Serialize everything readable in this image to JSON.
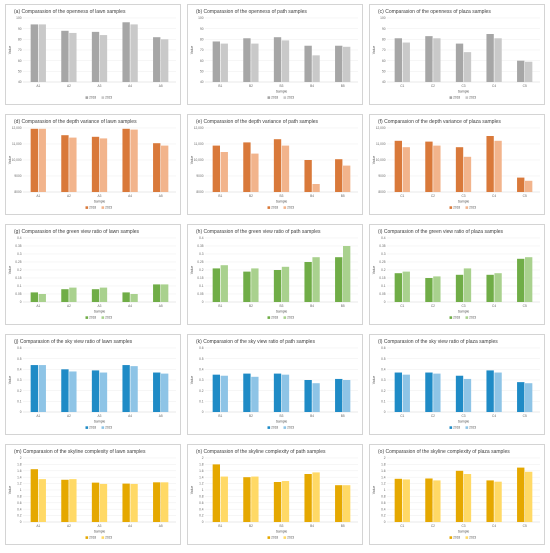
{
  "chart_data": [
    {
      "id": "a",
      "type": "bar",
      "title": "(a) Comparasion of the openness of lawn samples",
      "xlabel": "",
      "ylabel": "Value",
      "ylim": [
        40,
        100
      ],
      "ytick_labels": [
        "40",
        "50",
        "60",
        "70",
        "80",
        "90",
        "100"
      ],
      "categories": [
        "A1",
        "A2",
        "A3",
        "A4",
        "A5"
      ],
      "series": [
        {
          "name": "2018",
          "values": [
            94,
            88,
            87,
            96,
            82
          ],
          "color": "#a6a6a6"
        },
        {
          "name": "2023",
          "values": [
            94,
            86,
            84,
            94,
            80
          ],
          "color": "#c9c9c9"
        }
      ],
      "grid": true,
      "legend": "bottom"
    },
    {
      "id": "b",
      "type": "bar",
      "title": "(b) Comparasion of the openness of path samples",
      "xlabel": "Sample",
      "ylabel": "Value",
      "ylim": [
        40,
        100
      ],
      "ytick_labels": [
        "40",
        "50",
        "60",
        "70",
        "80",
        "90",
        "100"
      ],
      "categories": [
        "B1",
        "B2",
        "B3",
        "B4",
        "B5"
      ],
      "series": [
        {
          "name": "2018",
          "values": [
            78,
            81,
            82,
            74,
            74
          ],
          "color": "#a6a6a6"
        },
        {
          "name": "2023",
          "values": [
            76,
            76,
            79,
            65,
            73
          ],
          "color": "#c9c9c9"
        }
      ],
      "grid": true,
      "legend": "bottom"
    },
    {
      "id": "c",
      "type": "bar",
      "title": "(c) Comparasion of the openness of plaza samples",
      "xlabel": "Sample",
      "ylabel": "Value",
      "ylim": [
        40,
        100
      ],
      "ytick_labels": [
        "40",
        "50",
        "60",
        "70",
        "80",
        "90",
        "100"
      ],
      "categories": [
        "C1",
        "C2",
        "C3",
        "C4",
        "C5"
      ],
      "series": [
        {
          "name": "2018",
          "values": [
            81,
            83,
            76,
            85,
            60
          ],
          "color": "#a6a6a6"
        },
        {
          "name": "2023",
          "values": [
            77,
            81,
            68,
            81,
            59
          ],
          "color": "#c9c9c9"
        }
      ],
      "grid": true,
      "legend": "bottom"
    },
    {
      "id": "d",
      "type": "bar",
      "title": "(d) Comparasion of the depth variance of lawn samples",
      "xlabel": "Sample",
      "ylabel": "Value",
      "ylim": [
        8000,
        12000
      ],
      "ytick_labels": [
        "8000",
        "9000",
        "10,000",
        "11,000",
        "12,000"
      ],
      "categories": [
        "A1",
        "A2",
        "A3",
        "A4",
        "A5"
      ],
      "series": [
        {
          "name": "2018",
          "values": [
            11950,
            11550,
            11450,
            11950,
            11050
          ],
          "color": "#d9793a"
        },
        {
          "name": "2023",
          "values": [
            11950,
            11400,
            11350,
            11900,
            10900
          ],
          "color": "#f2b48c"
        }
      ],
      "grid": true,
      "legend": "bottom"
    },
    {
      "id": "e",
      "type": "bar",
      "title": "(e) Comparasion of the depth variance of path samples",
      "xlabel": "Sample",
      "ylabel": "Value",
      "ylim": [
        8000,
        12000
      ],
      "ytick_labels": [
        "8000",
        "9000",
        "10,000",
        "11,000",
        "12,000"
      ],
      "categories": [
        "B1",
        "B2",
        "B3",
        "B4",
        "B5"
      ],
      "series": [
        {
          "name": "2018",
          "values": [
            10900,
            11100,
            11300,
            10000,
            10050
          ],
          "color": "#d9793a"
        },
        {
          "name": "2023",
          "values": [
            10500,
            10400,
            10900,
            8500,
            9650
          ],
          "color": "#f2b48c"
        }
      ],
      "grid": true,
      "legend": "bottom"
    },
    {
      "id": "f",
      "type": "bar",
      "title": "(f) Comparasion of the depth variance of plaza samples",
      "xlabel": "Sample",
      "ylabel": "Value",
      "ylim": [
        8000,
        12000
      ],
      "ytick_labels": [
        "8000",
        "9000",
        "10,000",
        "11,000",
        "12,000"
      ],
      "categories": [
        "C1",
        "C2",
        "C3",
        "C4",
        "C5"
      ],
      "series": [
        {
          "name": "2018",
          "values": [
            11200,
            11150,
            10800,
            11500,
            8900
          ],
          "color": "#d9793a"
        },
        {
          "name": "2023",
          "values": [
            10800,
            10900,
            10200,
            11200,
            8700
          ],
          "color": "#f2b48c"
        }
      ],
      "grid": true,
      "legend": "bottom"
    },
    {
      "id": "g",
      "type": "bar",
      "title": "(g) Comparasion of the green view ratio of lawn samples",
      "xlabel": "Sample",
      "ylabel": "Value",
      "ylim": [
        0,
        0.4
      ],
      "ytick_labels": [
        "0",
        "0.05",
        "0.1",
        "0.15",
        "0.2",
        "0.25",
        "0.3",
        "0.35",
        "0.4"
      ],
      "categories": [
        "A1",
        "A2",
        "A3",
        "A4",
        "A5"
      ],
      "series": [
        {
          "name": "2018",
          "values": [
            0.06,
            0.08,
            0.08,
            0.06,
            0.11
          ],
          "color": "#70ad47"
        },
        {
          "name": "2023",
          "values": [
            0.05,
            0.09,
            0.09,
            0.05,
            0.11
          ],
          "color": "#a9d18e"
        }
      ],
      "grid": true,
      "legend": "bottom"
    },
    {
      "id": "h",
      "type": "bar",
      "title": "(h) Comparasion of the green view ratio of path samples",
      "xlabel": "Sample",
      "ylabel": "Value",
      "ylim": [
        0,
        0.4
      ],
      "ytick_labels": [
        "0",
        "0.05",
        "0.1",
        "0.15",
        "0.2",
        "0.25",
        "0.3",
        "0.35",
        "0.4"
      ],
      "categories": [
        "B1",
        "B2",
        "B3",
        "B4",
        "B5"
      ],
      "series": [
        {
          "name": "2018",
          "values": [
            0.21,
            0.19,
            0.2,
            0.25,
            0.28
          ],
          "color": "#70ad47"
        },
        {
          "name": "2023",
          "values": [
            0.23,
            0.21,
            0.22,
            0.28,
            0.35
          ],
          "color": "#a9d18e"
        }
      ],
      "grid": true,
      "legend": "bottom"
    },
    {
      "id": "i",
      "type": "bar",
      "title": "(i) Comparasion of the green view ratio of plaza samples",
      "xlabel": "Sample",
      "ylabel": "Value",
      "ylim": [
        0,
        0.4
      ],
      "ytick_labels": [
        "0",
        "0.05",
        "0.1",
        "0.15",
        "0.2",
        "0.25",
        "0.3",
        "0.35",
        "0.4"
      ],
      "categories": [
        "C1",
        "C2",
        "C3",
        "C4",
        "C5"
      ],
      "series": [
        {
          "name": "2018",
          "values": [
            0.18,
            0.15,
            0.17,
            0.17,
            0.27
          ],
          "color": "#70ad47"
        },
        {
          "name": "2023",
          "values": [
            0.19,
            0.16,
            0.21,
            0.18,
            0.28
          ],
          "color": "#a9d18e"
        }
      ],
      "grid": true,
      "legend": "bottom"
    },
    {
      "id": "j",
      "type": "bar",
      "title": "(j) Comparasion of the sky view ratio of lawn samples",
      "xlabel": "Sample",
      "ylabel": "Value",
      "ylim": [
        0,
        0.6
      ],
      "ytick_labels": [
        "0",
        "0.1",
        "0.2",
        "0.3",
        "0.4",
        "0.5",
        "0.6"
      ],
      "categories": [
        "A1",
        "A2",
        "A3",
        "A4",
        "A5"
      ],
      "series": [
        {
          "name": "2018",
          "values": [
            0.44,
            0.4,
            0.39,
            0.44,
            0.37
          ],
          "color": "#1f8bc6"
        },
        {
          "name": "2023",
          "values": [
            0.44,
            0.38,
            0.37,
            0.43,
            0.36
          ],
          "color": "#8ec4e6"
        }
      ],
      "grid": true,
      "legend": "bottom"
    },
    {
      "id": "k",
      "type": "bar",
      "title": "(k) Comparasion of the sky view ratio of path samples",
      "xlabel": "Sample",
      "ylabel": "Value",
      "ylim": [
        0,
        0.6
      ],
      "ytick_labels": [
        "0",
        "0.1",
        "0.2",
        "0.3",
        "0.4",
        "0.5",
        "0.6"
      ],
      "categories": [
        "B1",
        "B2",
        "B3",
        "B4",
        "B5"
      ],
      "series": [
        {
          "name": "2018",
          "values": [
            0.35,
            0.36,
            0.36,
            0.3,
            0.31
          ],
          "color": "#1f8bc6"
        },
        {
          "name": "2023",
          "values": [
            0.34,
            0.33,
            0.35,
            0.27,
            0.3
          ],
          "color": "#8ec4e6"
        }
      ],
      "grid": true,
      "legend": "bottom"
    },
    {
      "id": "l",
      "type": "bar",
      "title": "(l) Comparasion of the sky view ratio of plaza samples",
      "xlabel": "Sample",
      "ylabel": "Value",
      "ylim": [
        0,
        0.6
      ],
      "ytick_labels": [
        "0",
        "0.1",
        "0.2",
        "0.3",
        "0.4",
        "0.5",
        "0.6"
      ],
      "categories": [
        "C1",
        "C2",
        "C3",
        "C4",
        "C5"
      ],
      "series": [
        {
          "name": "2018",
          "values": [
            0.37,
            0.37,
            0.34,
            0.39,
            0.28
          ],
          "color": "#1f8bc6"
        },
        {
          "name": "2023",
          "values": [
            0.35,
            0.36,
            0.31,
            0.37,
            0.27
          ],
          "color": "#8ec4e6"
        }
      ],
      "grid": true,
      "legend": "bottom"
    },
    {
      "id": "m",
      "type": "bar",
      "title": "(m) Comparasion of the skyline complexity of lawn samples",
      "xlabel": "Sample",
      "ylabel": "Value",
      "ylim": [
        0,
        2
      ],
      "ytick_labels": [
        "0",
        "0.2",
        "0.4",
        "0.6",
        "0.8",
        "1",
        "1.2",
        "1.4",
        "1.6",
        "1.8",
        "2"
      ],
      "categories": [
        "A1",
        "A2",
        "A3",
        "A4",
        "A5"
      ],
      "series": [
        {
          "name": "2018",
          "values": [
            1.65,
            1.32,
            1.23,
            1.2,
            1.24
          ],
          "color": "#e5a800"
        },
        {
          "name": "2023",
          "values": [
            1.34,
            1.34,
            1.19,
            1.19,
            1.24
          ],
          "color": "#ffd966"
        }
      ],
      "grid": true,
      "legend": "bottom"
    },
    {
      "id": "n",
      "type": "bar",
      "title": "(n) Comparasion of the skyline complexity of path samples",
      "xlabel": "Sample",
      "ylabel": "Value",
      "ylim": [
        0,
        2
      ],
      "ytick_labels": [
        "0",
        "0.2",
        "0.4",
        "0.6",
        "0.8",
        "1",
        "1.2",
        "1.4",
        "1.6",
        "1.8",
        "2"
      ],
      "categories": [
        "B1",
        "B2",
        "B3",
        "B4",
        "B5"
      ],
      "series": [
        {
          "name": "2018",
          "values": [
            1.8,
            1.4,
            1.25,
            1.5,
            1.15
          ],
          "color": "#e5a800"
        },
        {
          "name": "2023",
          "values": [
            1.42,
            1.42,
            1.28,
            1.55,
            1.15
          ],
          "color": "#ffd966"
        }
      ],
      "grid": true,
      "legend": "bottom"
    },
    {
      "id": "o",
      "type": "bar",
      "title": "(o) Comparasion of the skyline complexity of plaza samples",
      "xlabel": "Sample",
      "ylabel": "Value",
      "ylim": [
        0,
        2
      ],
      "ytick_labels": [
        "0",
        "0.2",
        "0.4",
        "0.6",
        "0.8",
        "1",
        "1.2",
        "1.4",
        "1.6",
        "1.8",
        "2"
      ],
      "categories": [
        "C1",
        "C2",
        "C3",
        "C4",
        "C5"
      ],
      "series": [
        {
          "name": "2018",
          "values": [
            1.35,
            1.36,
            1.6,
            1.3,
            1.7
          ],
          "color": "#e5a800"
        },
        {
          "name": "2023",
          "values": [
            1.33,
            1.3,
            1.5,
            1.26,
            1.57
          ],
          "color": "#ffd966"
        }
      ],
      "grid": true,
      "legend": "bottom"
    }
  ]
}
